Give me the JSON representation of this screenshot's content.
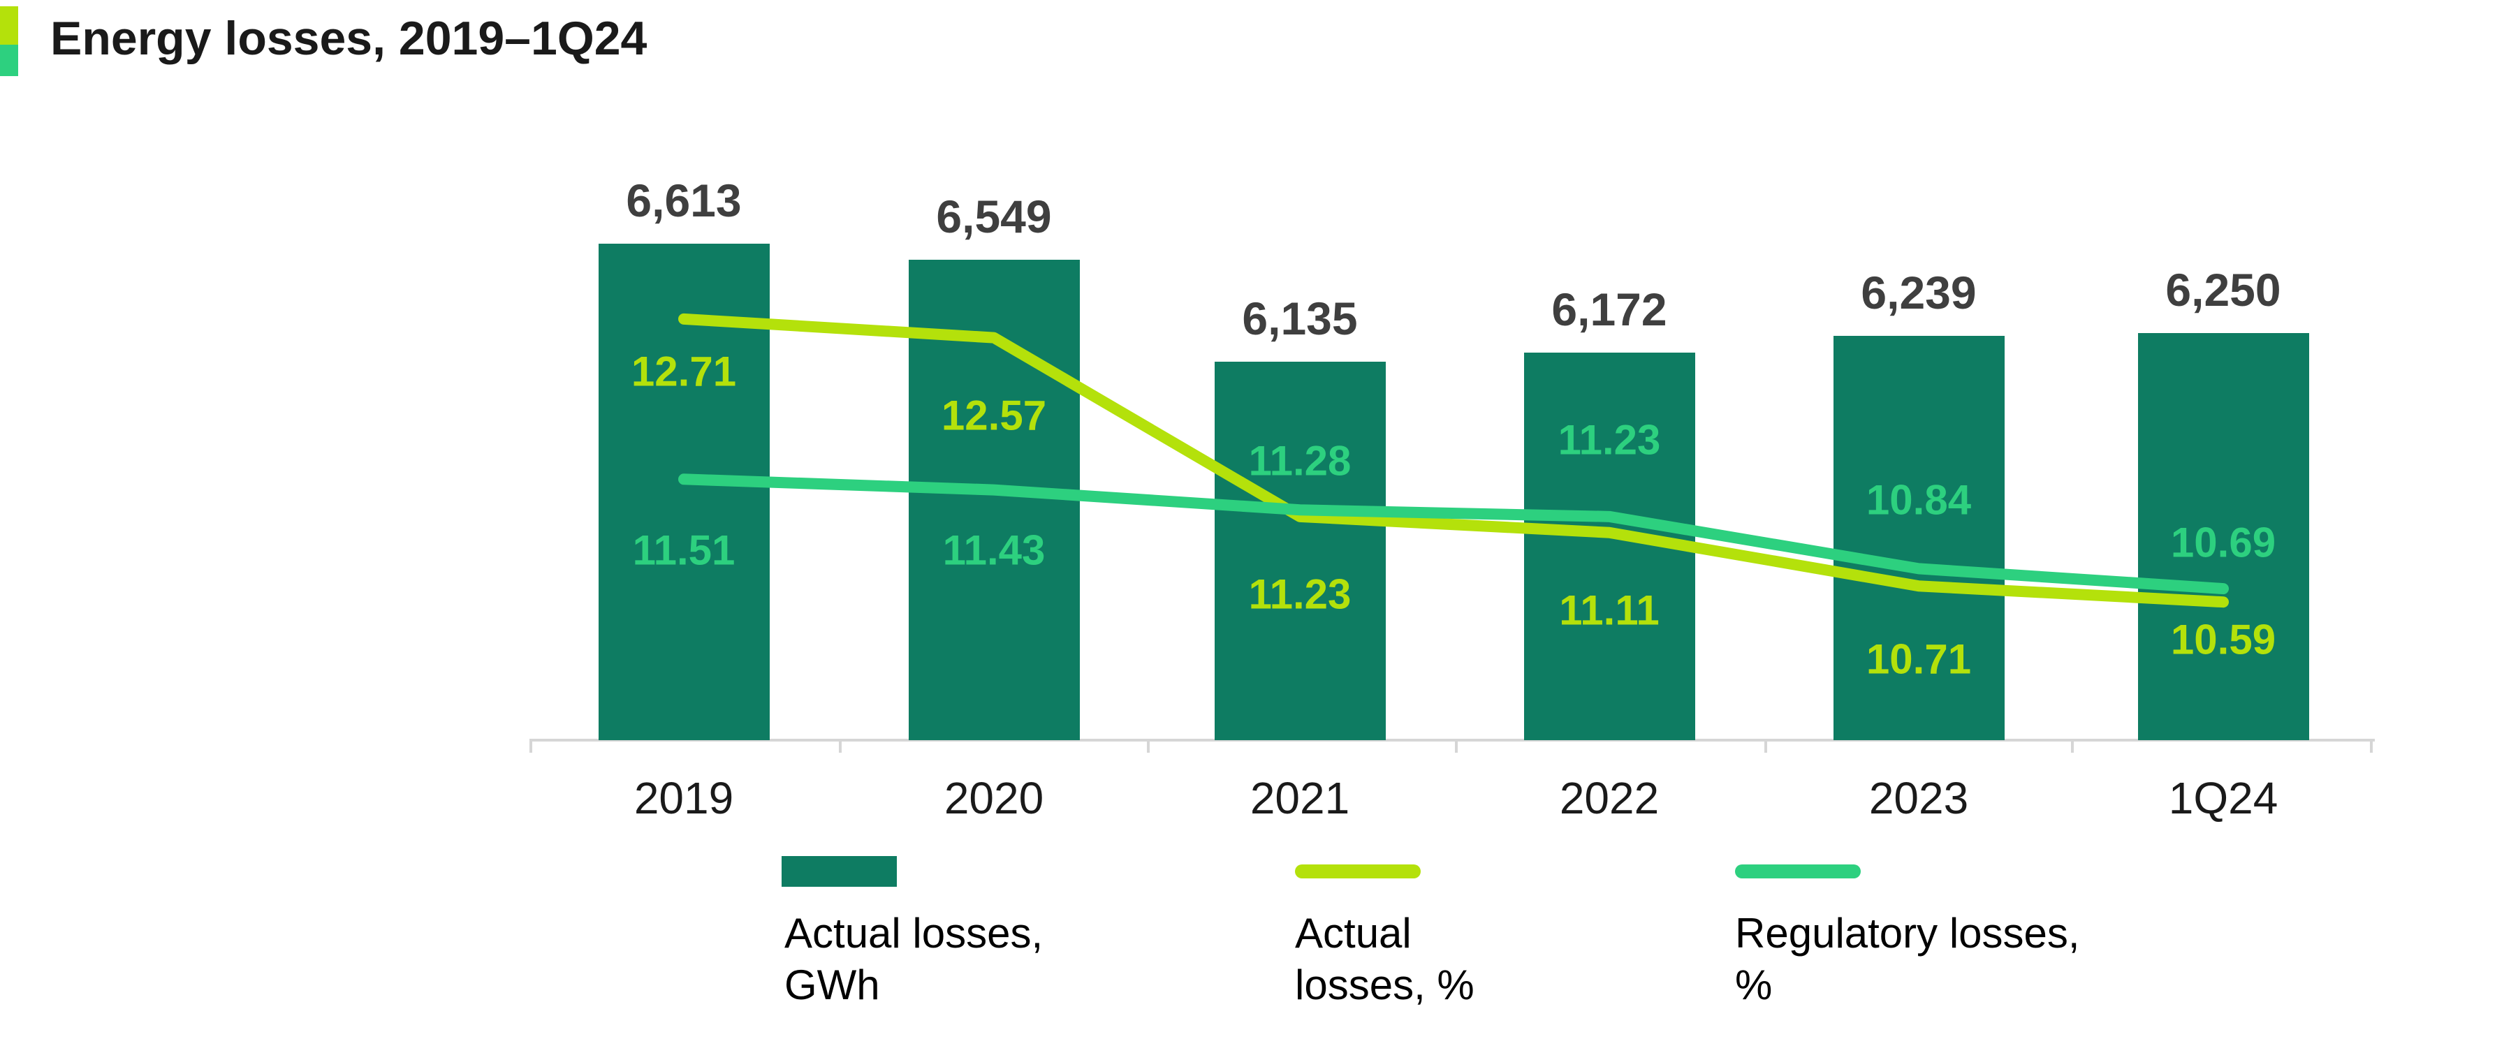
{
  "title": "Energy losses, 2019–1Q24",
  "accent": {
    "top_color": "#b4e10b",
    "bottom_color": "#2dd07f"
  },
  "legend": {
    "items": [
      {
        "label": "Actual losses, GWh",
        "type": "bar",
        "color": "#0e7c62"
      },
      {
        "label": "Actual losses, %",
        "type": "line",
        "color": "#b4e10b"
      },
      {
        "label": "Regulatory losses, %",
        "type": "line",
        "color": "#2dd07f"
      }
    ]
  },
  "chart_data": {
    "type": "combo",
    "title": "Energy losses, 2019–1Q24",
    "xlabel": "",
    "ylabel": "",
    "categories": [
      "2019",
      "2020",
      "2021",
      "2022",
      "2023",
      "1Q24"
    ],
    "series": [
      {
        "name": "Actual losses, GWh",
        "type": "bar",
        "color": "#0e7c62",
        "values": [
          6613,
          6549,
          6135,
          6172,
          6239,
          6250
        ],
        "labels": [
          "6,613",
          "6,549",
          "6,135",
          "6,172",
          "6,239",
          "6,250"
        ]
      },
      {
        "name": "Actual losses, %",
        "type": "line",
        "color": "#b4e10b",
        "values": [
          12.71,
          12.57,
          11.23,
          11.11,
          10.71,
          10.59
        ],
        "labels": [
          "12.71",
          "12.57",
          "11.23",
          "11.11",
          "10.71",
          "10.59"
        ]
      },
      {
        "name": "Regulatory losses, %",
        "type": "line",
        "color": "#2dd07f",
        "values": [
          11.51,
          11.43,
          11.28,
          11.23,
          10.84,
          10.69
        ],
        "labels": [
          "11.51",
          "11.43",
          "11.28",
          "11.23",
          "10.84",
          "10.69"
        ]
      }
    ],
    "legend_position": "bottom",
    "grid": false,
    "bar_value_labels_position": "above",
    "pct_value_labels_position": "on-bars"
  }
}
